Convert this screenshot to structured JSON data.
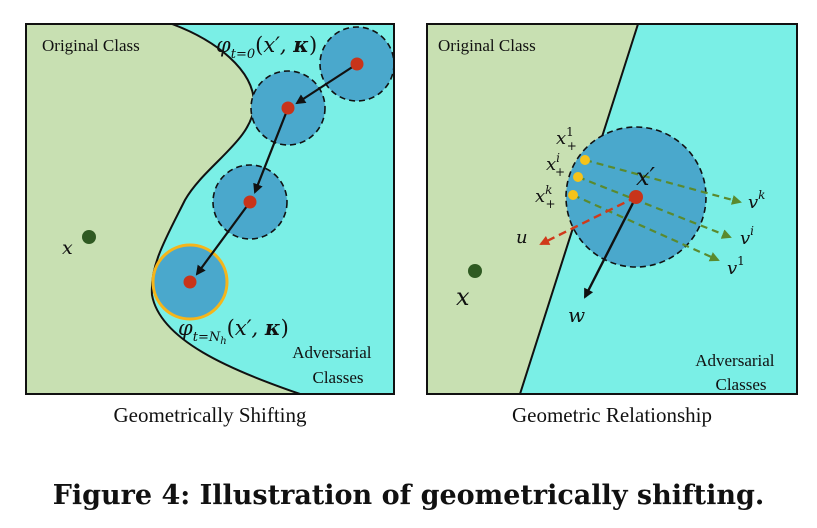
{
  "colors": {
    "original_region": "#c8e0b2",
    "adversarial_region": "#7aefe6",
    "ball_fill": "#4aa8cc",
    "center_point": "#c8341a",
    "highlight_ring": "#f5b51a",
    "dark_point": "#2f5a22",
    "yellow_point": "#f5c31a",
    "dashed_green_arrow": "#5a8a2e",
    "dashed_red_arrow": "#d0391a"
  },
  "left_panel": {
    "region_original_label": "Original Class",
    "region_adversarial_label": "Adversarial\nClasses",
    "point_x_label": "x",
    "top_ball_label": "φt=0(x′, κ)",
    "bottom_ball_label": "φt=Nh(x′, κ)",
    "subcaption": "Geometrically Shifting"
  },
  "right_panel": {
    "region_original_label": "Original Class",
    "region_adversarial_label": "Adversarial\nClasses",
    "point_x_label": "x",
    "center_label": "x′",
    "label_x_plus_1": "x+1",
    "label_x_plus_i": "x+i",
    "label_x_plus_k": "x+k",
    "label_u": "u",
    "label_w": "w",
    "label_vk": "vk",
    "label_vi": "vi",
    "label_v1": "v1",
    "subcaption": "Geometric Relationship"
  },
  "figure_caption": "Figure 4: Illustration of geometrically shifting."
}
